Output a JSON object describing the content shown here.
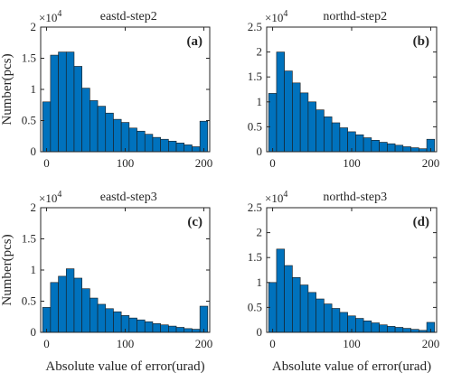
{
  "chart_data": [
    {
      "type": "bar",
      "title": "eastd-step2",
      "panel_label": "(a)",
      "ylabel": "Number(pcs)",
      "xlabel": "",
      "multiplier": "×10",
      "multiplier_exp": "4",
      "bin_centers": [
        0,
        10,
        20,
        30,
        40,
        50,
        60,
        70,
        80,
        90,
        100,
        110,
        120,
        130,
        140,
        150,
        160,
        170,
        180,
        190,
        200
      ],
      "values": [
        0.8,
        1.55,
        1.6,
        1.6,
        1.37,
        1.02,
        0.82,
        0.73,
        0.62,
        0.52,
        0.47,
        0.38,
        0.33,
        0.28,
        0.23,
        0.2,
        0.17,
        0.14,
        0.11,
        0.08,
        0.49
      ],
      "xlim": [
        -7.5,
        207.5
      ],
      "ylim": [
        0,
        2
      ],
      "xticks": [
        "0",
        "100",
        "200"
      ],
      "yticks": [
        "0",
        "0.5",
        "1",
        "1.5",
        "2"
      ]
    },
    {
      "type": "bar",
      "title": "northd-step2",
      "panel_label": "(b)",
      "ylabel": "",
      "xlabel": "",
      "multiplier": "×10",
      "multiplier_exp": "4",
      "bin_centers": [
        0,
        10,
        20,
        30,
        40,
        50,
        60,
        70,
        80,
        90,
        100,
        110,
        120,
        130,
        140,
        150,
        160,
        170,
        180,
        190,
        200
      ],
      "values": [
        1.17,
        2.0,
        1.62,
        1.38,
        1.18,
        1.0,
        0.84,
        0.7,
        0.58,
        0.48,
        0.4,
        0.34,
        0.28,
        0.23,
        0.19,
        0.16,
        0.13,
        0.1,
        0.08,
        0.06,
        0.25
      ],
      "xlim": [
        -7.5,
        207.5
      ],
      "ylim": [
        0,
        2.5
      ],
      "xticks": [
        "0",
        "100",
        "200"
      ],
      "yticks": [
        "0",
        "0.5",
        "1",
        "1.5",
        "2",
        "2.5"
      ]
    },
    {
      "type": "bar",
      "title": "eastd-step3",
      "panel_label": "(c)",
      "ylabel": "Number(pcs)",
      "xlabel": "Absolute value of error(urad)",
      "multiplier": "×10",
      "multiplier_exp": "4",
      "bin_centers": [
        0,
        10,
        20,
        30,
        40,
        50,
        60,
        70,
        80,
        90,
        100,
        110,
        120,
        130,
        140,
        150,
        160,
        170,
        180,
        190,
        200
      ],
      "values": [
        0.4,
        0.8,
        0.9,
        1.02,
        0.87,
        0.7,
        0.55,
        0.45,
        0.38,
        0.33,
        0.27,
        0.23,
        0.2,
        0.17,
        0.14,
        0.12,
        0.1,
        0.08,
        0.06,
        0.05,
        0.42
      ],
      "xlim": [
        -7.5,
        207.5
      ],
      "ylim": [
        0,
        2
      ],
      "xticks": [
        "0",
        "100",
        "200"
      ],
      "yticks": [
        "0",
        "0.5",
        "1",
        "1.5",
        "2"
      ]
    },
    {
      "type": "bar",
      "title": "northd-step3",
      "panel_label": "(d)",
      "ylabel": "",
      "xlabel": "Absolute value of error(urad)",
      "multiplier": "×10",
      "multiplier_exp": "4",
      "bin_centers": [
        0,
        10,
        20,
        30,
        40,
        50,
        60,
        70,
        80,
        90,
        100,
        110,
        120,
        130,
        140,
        150,
        160,
        170,
        180,
        190,
        200
      ],
      "values": [
        1.0,
        1.67,
        1.34,
        1.1,
        0.95,
        0.8,
        0.67,
        0.57,
        0.48,
        0.4,
        0.33,
        0.28,
        0.23,
        0.19,
        0.15,
        0.12,
        0.1,
        0.08,
        0.06,
        0.04,
        0.2
      ],
      "xlim": [
        -7.5,
        207.5
      ],
      "ylim": [
        0,
        2.5
      ],
      "xticks": [
        "0",
        "100",
        "200"
      ],
      "yticks": [
        "0",
        "0.5",
        "1",
        "1.5",
        "2",
        "2.5"
      ]
    }
  ]
}
